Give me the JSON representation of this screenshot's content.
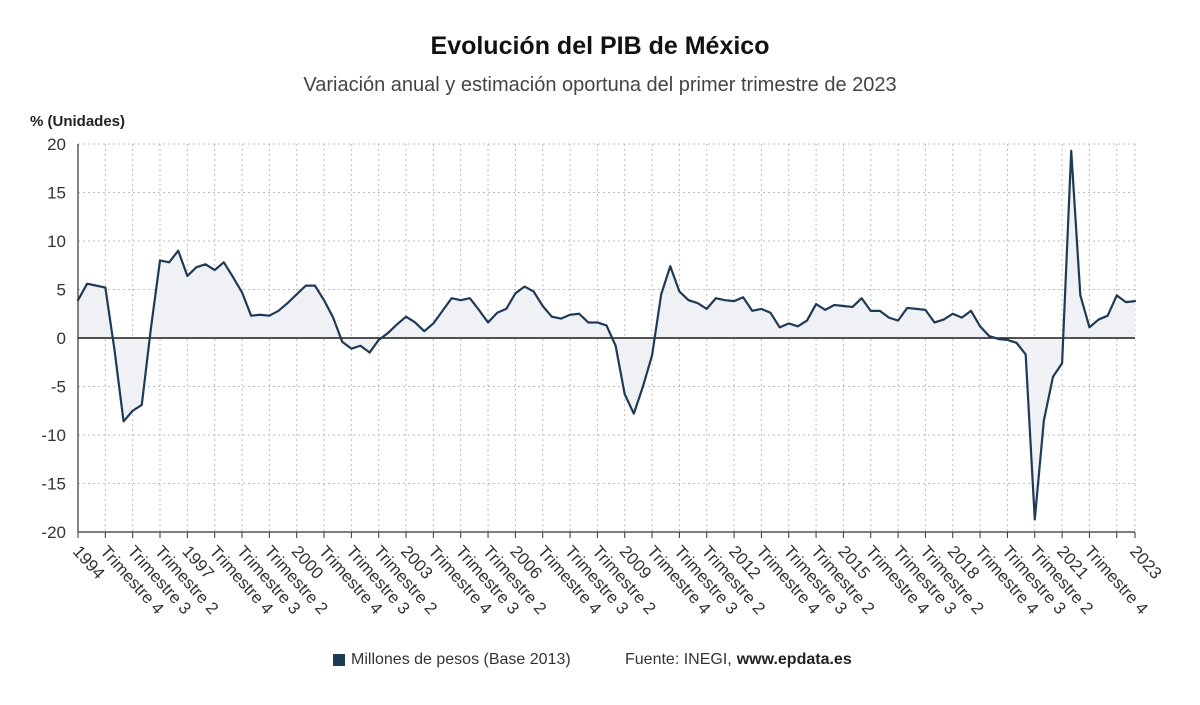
{
  "chart_data": {
    "type": "area",
    "title": "Evolución del PIB de México",
    "subtitle": "Variación anual y estimación oportuna del primer trimestre de 2023",
    "xlabel": "",
    "ylabel": "% (Unidades)",
    "ylim": [
      -20,
      20
    ],
    "y_ticks": [
      20,
      15,
      10,
      5,
      0,
      -5,
      -10,
      -15,
      -20
    ],
    "grid": true,
    "area_fill_to_zero": true,
    "legend_position": "bottom",
    "x_ticks": [
      {
        "label": "1994",
        "x": [
          1994,
          1
        ]
      },
      {
        "label": "Trimestre 4",
        "x": [
          1994,
          4
        ]
      },
      {
        "label": "Trimestre 3",
        "x": [
          1995,
          3
        ]
      },
      {
        "label": "Trimestre 2",
        "x": [
          1996,
          2
        ]
      },
      {
        "label": "1997",
        "x": [
          1997,
          1
        ]
      },
      {
        "label": "Trimestre 4",
        "x": [
          1997,
          4
        ]
      },
      {
        "label": "Trimestre 3",
        "x": [
          1998,
          3
        ]
      },
      {
        "label": "Trimestre 2",
        "x": [
          1999,
          2
        ]
      },
      {
        "label": "2000",
        "x": [
          2000,
          1
        ]
      },
      {
        "label": "Trimestre 4",
        "x": [
          2000,
          4
        ]
      },
      {
        "label": "Trimestre 3",
        "x": [
          2001,
          3
        ]
      },
      {
        "label": "Trimestre 2",
        "x": [
          2002,
          2
        ]
      },
      {
        "label": "2003",
        "x": [
          2003,
          1
        ]
      },
      {
        "label": "Trimestre 4",
        "x": [
          2003,
          4
        ]
      },
      {
        "label": "Trimestre 3",
        "x": [
          2004,
          3
        ]
      },
      {
        "label": "Trimestre 2",
        "x": [
          2005,
          2
        ]
      },
      {
        "label": "2006",
        "x": [
          2006,
          1
        ]
      },
      {
        "label": "Trimestre 4",
        "x": [
          2006,
          4
        ]
      },
      {
        "label": "Trimestre 3",
        "x": [
          2007,
          3
        ]
      },
      {
        "label": "Trimestre 2",
        "x": [
          2008,
          2
        ]
      },
      {
        "label": "2009",
        "x": [
          2009,
          1
        ]
      },
      {
        "label": "Trimestre 4",
        "x": [
          2009,
          4
        ]
      },
      {
        "label": "Trimestre 3",
        "x": [
          2010,
          3
        ]
      },
      {
        "label": "Trimestre 2",
        "x": [
          2011,
          2
        ]
      },
      {
        "label": "2012",
        "x": [
          2012,
          1
        ]
      },
      {
        "label": "Trimestre 4",
        "x": [
          2012,
          4
        ]
      },
      {
        "label": "Trimestre 3",
        "x": [
          2013,
          3
        ]
      },
      {
        "label": "Trimestre 2",
        "x": [
          2014,
          2
        ]
      },
      {
        "label": "2015",
        "x": [
          2015,
          1
        ]
      },
      {
        "label": "Trimestre 4",
        "x": [
          2015,
          4
        ]
      },
      {
        "label": "Trimestre 3",
        "x": [
          2016,
          3
        ]
      },
      {
        "label": "Trimestre 2",
        "x": [
          2017,
          2
        ]
      },
      {
        "label": "2018",
        "x": [
          2018,
          1
        ]
      },
      {
        "label": "Trimestre 4",
        "x": [
          2018,
          4
        ]
      },
      {
        "label": "Trimestre 3",
        "x": [
          2019,
          3
        ]
      },
      {
        "label": "Trimestre 2",
        "x": [
          2020,
          2
        ]
      },
      {
        "label": "2021",
        "x": [
          2021,
          1
        ]
      },
      {
        "label": "Trimestre 4",
        "x": [
          2021,
          4
        ]
      },
      {
        "label": "2023",
        "x": [
          2023,
          1
        ]
      }
    ],
    "x": [
      [
        1994,
        1
      ],
      [
        1994,
        2
      ],
      [
        1994,
        3
      ],
      [
        1994,
        4
      ],
      [
        1995,
        1
      ],
      [
        1995,
        2
      ],
      [
        1995,
        3
      ],
      [
        1995,
        4
      ],
      [
        1996,
        1
      ],
      [
        1996,
        2
      ],
      [
        1996,
        3
      ],
      [
        1996,
        4
      ],
      [
        1997,
        1
      ],
      [
        1997,
        2
      ],
      [
        1997,
        3
      ],
      [
        1997,
        4
      ],
      [
        1998,
        1
      ],
      [
        1998,
        2
      ],
      [
        1998,
        3
      ],
      [
        1998,
        4
      ],
      [
        1999,
        1
      ],
      [
        1999,
        2
      ],
      [
        1999,
        3
      ],
      [
        1999,
        4
      ],
      [
        2000,
        1
      ],
      [
        2000,
        2
      ],
      [
        2000,
        3
      ],
      [
        2000,
        4
      ],
      [
        2001,
        1
      ],
      [
        2001,
        2
      ],
      [
        2001,
        3
      ],
      [
        2001,
        4
      ],
      [
        2002,
        1
      ],
      [
        2002,
        2
      ],
      [
        2002,
        3
      ],
      [
        2002,
        4
      ],
      [
        2003,
        1
      ],
      [
        2003,
        2
      ],
      [
        2003,
        3
      ],
      [
        2003,
        4
      ],
      [
        2004,
        1
      ],
      [
        2004,
        2
      ],
      [
        2004,
        3
      ],
      [
        2004,
        4
      ],
      [
        2005,
        1
      ],
      [
        2005,
        2
      ],
      [
        2005,
        3
      ],
      [
        2005,
        4
      ],
      [
        2006,
        1
      ],
      [
        2006,
        2
      ],
      [
        2006,
        3
      ],
      [
        2006,
        4
      ],
      [
        2007,
        1
      ],
      [
        2007,
        2
      ],
      [
        2007,
        3
      ],
      [
        2007,
        4
      ],
      [
        2008,
        1
      ],
      [
        2008,
        2
      ],
      [
        2008,
        3
      ],
      [
        2008,
        4
      ],
      [
        2009,
        1
      ],
      [
        2009,
        2
      ],
      [
        2009,
        3
      ],
      [
        2009,
        4
      ],
      [
        2010,
        1
      ],
      [
        2010,
        2
      ],
      [
        2010,
        3
      ],
      [
        2010,
        4
      ],
      [
        2011,
        1
      ],
      [
        2011,
        2
      ],
      [
        2011,
        3
      ],
      [
        2011,
        4
      ],
      [
        2012,
        1
      ],
      [
        2012,
        2
      ],
      [
        2012,
        3
      ],
      [
        2012,
        4
      ],
      [
        2013,
        1
      ],
      [
        2013,
        2
      ],
      [
        2013,
        3
      ],
      [
        2013,
        4
      ],
      [
        2014,
        1
      ],
      [
        2014,
        2
      ],
      [
        2014,
        3
      ],
      [
        2014,
        4
      ],
      [
        2015,
        1
      ],
      [
        2015,
        2
      ],
      [
        2015,
        3
      ],
      [
        2015,
        4
      ],
      [
        2016,
        1
      ],
      [
        2016,
        2
      ],
      [
        2016,
        3
      ],
      [
        2016,
        4
      ],
      [
        2017,
        1
      ],
      [
        2017,
        2
      ],
      [
        2017,
        3
      ],
      [
        2017,
        4
      ],
      [
        2018,
        1
      ],
      [
        2018,
        2
      ],
      [
        2018,
        3
      ],
      [
        2018,
        4
      ],
      [
        2019,
        1
      ],
      [
        2019,
        2
      ],
      [
        2019,
        3
      ],
      [
        2019,
        4
      ],
      [
        2020,
        1
      ],
      [
        2020,
        2
      ],
      [
        2020,
        3
      ],
      [
        2020,
        4
      ],
      [
        2021,
        1
      ],
      [
        2021,
        2
      ],
      [
        2021,
        3
      ],
      [
        2021,
        4
      ],
      [
        2022,
        1
      ],
      [
        2022,
        2
      ],
      [
        2022,
        3
      ],
      [
        2022,
        4
      ],
      [
        2023,
        1
      ]
    ],
    "series": [
      {
        "name": "Millones de pesos (Base 2013)",
        "values": [
          3.9,
          5.6,
          5.4,
          5.2,
          -1.2,
          -8.6,
          -7.5,
          -6.9,
          1.0,
          8.0,
          7.8,
          9.0,
          6.4,
          7.3,
          7.6,
          7.0,
          7.8,
          6.3,
          4.7,
          2.3,
          2.4,
          2.3,
          2.8,
          3.6,
          4.5,
          5.4,
          5.4,
          3.9,
          2.1,
          -0.4,
          -1.1,
          -0.8,
          -1.5,
          -0.2,
          0.5,
          1.4,
          2.2,
          1.6,
          0.7,
          1.5,
          2.8,
          4.1,
          3.9,
          4.1,
          2.9,
          1.6,
          2.6,
          3.0,
          4.6,
          5.3,
          4.8,
          3.3,
          2.2,
          2.0,
          2.4,
          2.5,
          1.6,
          1.6,
          1.3,
          -0.8,
          -5.8,
          -7.8,
          -5.0,
          -1.8,
          4.5,
          7.4,
          4.8,
          3.9,
          3.6,
          3.0,
          4.1,
          3.9,
          3.8,
          4.2,
          2.8,
          3.0,
          2.6,
          1.1,
          1.5,
          1.2,
          1.8,
          3.5,
          2.9,
          3.4,
          3.3,
          3.2,
          4.1,
          2.8,
          2.8,
          2.1,
          1.8,
          3.1,
          3.0,
          2.9,
          1.6,
          1.9,
          2.5,
          2.1,
          2.8,
          1.2,
          0.2,
          -0.1,
          -0.2,
          -0.5,
          -1.7,
          -18.7,
          -8.5,
          -4.0,
          -2.6,
          19.3,
          4.4,
          1.1,
          1.9,
          2.3,
          4.4,
          3.7,
          3.8
        ]
      }
    ],
    "source": {
      "prefix": "Fuente: INEGI,",
      "site": "www.epdata.es"
    }
  },
  "colors": {
    "line": "#1f3a57",
    "area": "#eff1f5",
    "zero_line": "#1a1a1a",
    "grid": "#bdbdbd",
    "axis": "#333333",
    "tick_text": "#333333"
  }
}
